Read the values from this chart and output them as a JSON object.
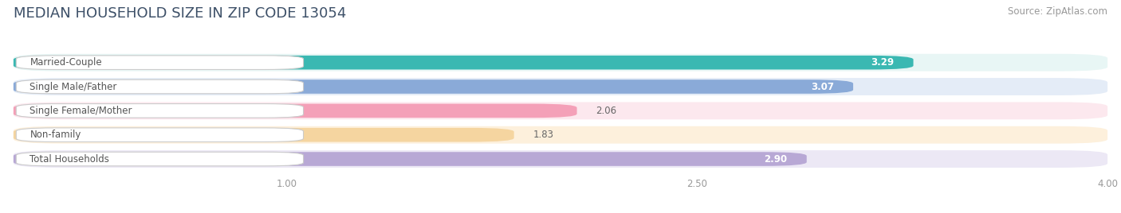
{
  "title": "MEDIAN HOUSEHOLD SIZE IN ZIP CODE 13054",
  "source": "Source: ZipAtlas.com",
  "categories": [
    "Married-Couple",
    "Single Male/Father",
    "Single Female/Mother",
    "Non-family",
    "Total Households"
  ],
  "values": [
    3.29,
    3.07,
    2.06,
    1.83,
    2.9
  ],
  "bar_colors": [
    "#3ab8b2",
    "#8aaad8",
    "#f4a0b8",
    "#f5d5a0",
    "#b8a8d5"
  ],
  "bar_bg_colors": [
    "#e8f6f5",
    "#e4ecf7",
    "#fce8ee",
    "#fdf0dc",
    "#ece8f5"
  ],
  "xlim_left": 0.0,
  "xlim_right": 4.0,
  "xticks": [
    1.0,
    2.5,
    4.0
  ],
  "title_fontsize": 13,
  "source_fontsize": 8.5,
  "label_fontsize": 8.5,
  "value_fontsize": 8.5,
  "background_color": "#ffffff",
  "title_color": "#3d5068",
  "source_color": "#999999",
  "tick_color": "#999999"
}
